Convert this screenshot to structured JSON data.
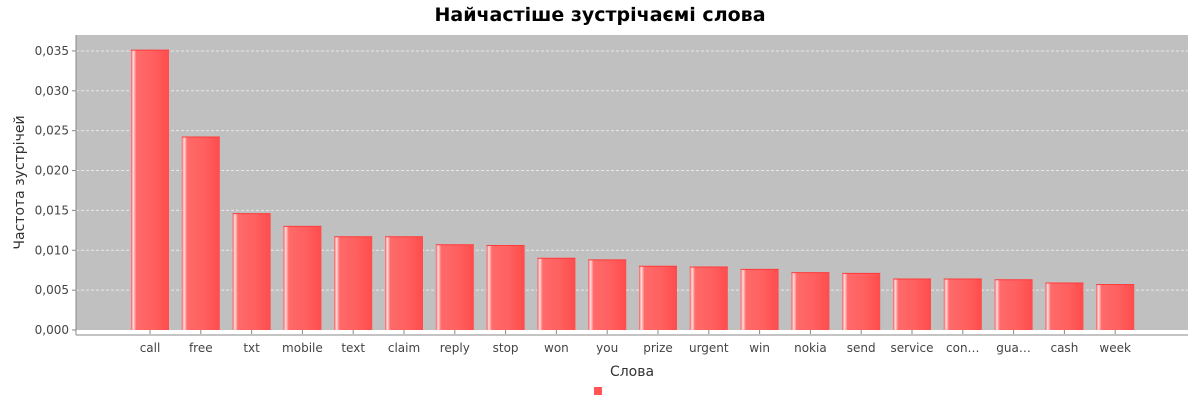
{
  "chart_data": {
    "type": "bar",
    "title": "Найчастіше зустрічаємі слова",
    "xlabel": "Слова",
    "ylabel": "Частота зустрічей",
    "categories": [
      "call",
      "free",
      "txt",
      "mobile",
      "text",
      "claim",
      "reply",
      "stop",
      "won",
      "you",
      "prize",
      "urgent",
      "win",
      "nokia",
      "send",
      "service",
      "con…",
      "gua…",
      "cash",
      "week"
    ],
    "values": [
      0.0351,
      0.0242,
      0.0146,
      0.013,
      0.0117,
      0.0117,
      0.0107,
      0.0106,
      0.009,
      0.0088,
      0.008,
      0.0079,
      0.0076,
      0.0072,
      0.0071,
      0.0064,
      0.0064,
      0.0063,
      0.0059,
      0.0057
    ],
    "ylim": [
      0,
      0.037
    ],
    "yticks": [
      0,
      0.005,
      0.01,
      0.015,
      0.02,
      0.025,
      0.03,
      0.035
    ],
    "ytick_labels": [
      "0,000",
      "0,005",
      "0,010",
      "0,015",
      "0,020",
      "0,025",
      "0,030",
      "0,035"
    ],
    "grid": true,
    "legend": "bottom-center",
    "colors": {
      "bar": "#ff5555",
      "bar_highlight": "#ffd6d6",
      "plot_background": "#c0c0c0",
      "grid": "#e8e8e8"
    }
  }
}
